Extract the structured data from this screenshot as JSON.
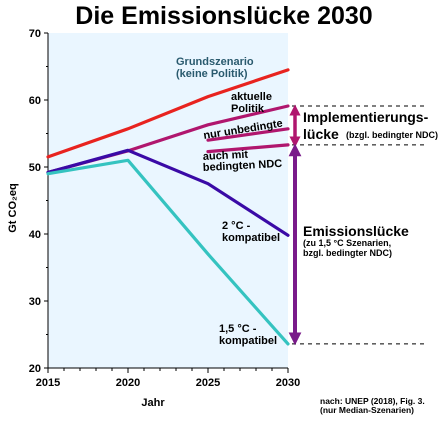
{
  "chart_data": {
    "type": "line",
    "title": "Die Emissionslücke 2030",
    "xlabel": "Jahr",
    "ylabel": "Gt CO₂eq",
    "xlim": [
      2015,
      2030
    ],
    "ylim": [
      20,
      70
    ],
    "x_ticks": [
      "2015",
      "2020",
      "2025",
      "2030"
    ],
    "y_ticks": [
      "20",
      "30",
      "40",
      "50",
      "60",
      "70"
    ],
    "series": [
      {
        "name": "Grundszenario (keine Politik)",
        "color": "#e8231f",
        "points": [
          [
            2015,
            51.5
          ],
          [
            2020,
            55.7
          ],
          [
            2025,
            60.5
          ],
          [
            2030,
            64.5
          ]
        ]
      },
      {
        "name": "aktuelle Politik",
        "color": "#b0166e",
        "points": [
          [
            2015,
            49.2
          ],
          [
            2020,
            52.4
          ],
          [
            2025,
            56.3
          ],
          [
            2030,
            59.1
          ]
        ]
      },
      {
        "name": "nur unbedingte NDC",
        "color": "#b0166e",
        "points": [
          [
            2025,
            54.0
          ],
          [
            2030,
            55.7
          ]
        ]
      },
      {
        "name": "auch mit bedingten NDC",
        "color": "#b0166e",
        "points": [
          [
            2025,
            52.3
          ],
          [
            2030,
            53.3
          ]
        ]
      },
      {
        "name": "2 °C - kompatibel",
        "color": "#3a0aa6",
        "points": [
          [
            2015,
            49.2
          ],
          [
            2020,
            52.5
          ],
          [
            2025,
            47.5
          ],
          [
            2030,
            39.8
          ]
        ]
      },
      {
        "name": "1,5 °C - kompatibel",
        "color": "#35c3c0",
        "points": [
          [
            2015,
            49.0
          ],
          [
            2020,
            51.0
          ],
          [
            2025,
            37.0
          ],
          [
            2030,
            23.6
          ]
        ]
      }
    ],
    "annotations": {
      "baseline_line1": "Grundszenario",
      "baseline_line2": "(keine Politik)",
      "current_line1": "aktuelle",
      "current_line2": "Politik",
      "uncond": "nur unbedingte",
      "cond_line1": "auch mit",
      "cond_line2": "bedingten NDC",
      "two_c_line1": "2 °C -",
      "two_c_line2": "kompatibel",
      "one5_line1": "1,5 °C -",
      "one5_line2": "kompatibel",
      "impl_line1": "Implementierungs-",
      "impl_line2": "lücke",
      "impl_note": "(bzgl. bedingter NDC)",
      "gap_title": "Emissionslücke",
      "gap_note1": "(zu 1,5 °C Szenarien,",
      "gap_note2": "bzgl. bedingter NDC)",
      "source_line1": "nach: UNEP (2018), Fig. 3.",
      "source_line2": "(nur Median-Szenarien)"
    },
    "implementation_gap": {
      "from": 53.3,
      "to": 59.1,
      "color": "#b0166e"
    },
    "emissions_gap": {
      "from": 23.6,
      "to": 53.3,
      "color": "#7a1a8a"
    },
    "plot_background": "#eaf6ff",
    "grid": false,
    "legend": "none"
  }
}
